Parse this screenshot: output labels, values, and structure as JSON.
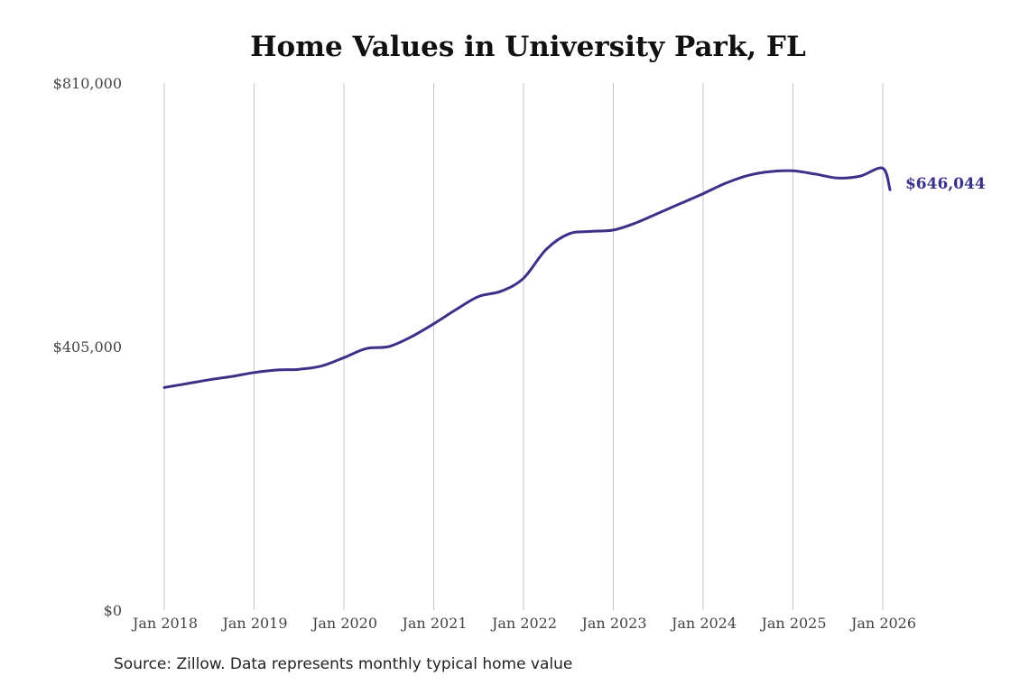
{
  "chart_data": {
    "type": "line",
    "title": "Home Values in University Park, FL",
    "xlabel": "",
    "ylabel": "",
    "ylim": [
      0,
      810000
    ],
    "y_tick_labels": [
      "$0",
      "$405,000",
      "$810,000"
    ],
    "y_ticks": [
      0,
      405000,
      810000
    ],
    "x_tick_labels": [
      "Jan 2018",
      "Jan 2019",
      "Jan 2020",
      "Jan 2021",
      "Jan 2022",
      "Jan 2023",
      "Jan 2024",
      "Jan 2025",
      "Jan 2026"
    ],
    "x_ticks": [
      2018,
      2019,
      2020,
      2021,
      2022,
      2023,
      2024,
      2025,
      2026
    ],
    "xlim": [
      2018,
      2026.08
    ],
    "grid": "vertical",
    "line_color": "#3b3189",
    "series": [
      {
        "name": "",
        "x": [
          2018.0,
          2018.25,
          2018.5,
          2018.75,
          2019.0,
          2019.25,
          2019.5,
          2019.75,
          2020.0,
          2020.25,
          2020.5,
          2020.75,
          2021.0,
          2021.25,
          2021.5,
          2021.75,
          2022.0,
          2022.25,
          2022.5,
          2022.75,
          2023.0,
          2023.25,
          2023.5,
          2023.75,
          2024.0,
          2024.25,
          2024.5,
          2024.75,
          2025.0,
          2025.25,
          2025.5,
          2025.75,
          2026.0,
          2026.08
        ],
        "values": [
          342000,
          348000,
          354000,
          359000,
          365000,
          369000,
          370000,
          375000,
          388000,
          402000,
          405000,
          420000,
          440000,
          462000,
          482000,
          490000,
          510000,
          554000,
          578000,
          582000,
          584000,
          595000,
          610000,
          625000,
          640000,
          656000,
          668000,
          674000,
          675000,
          670000,
          664000,
          667000,
          679000,
          646044
        ]
      }
    ],
    "end_label": "$646,044"
  },
  "source_note": "Source: Zillow. Data represents monthly typical home value"
}
